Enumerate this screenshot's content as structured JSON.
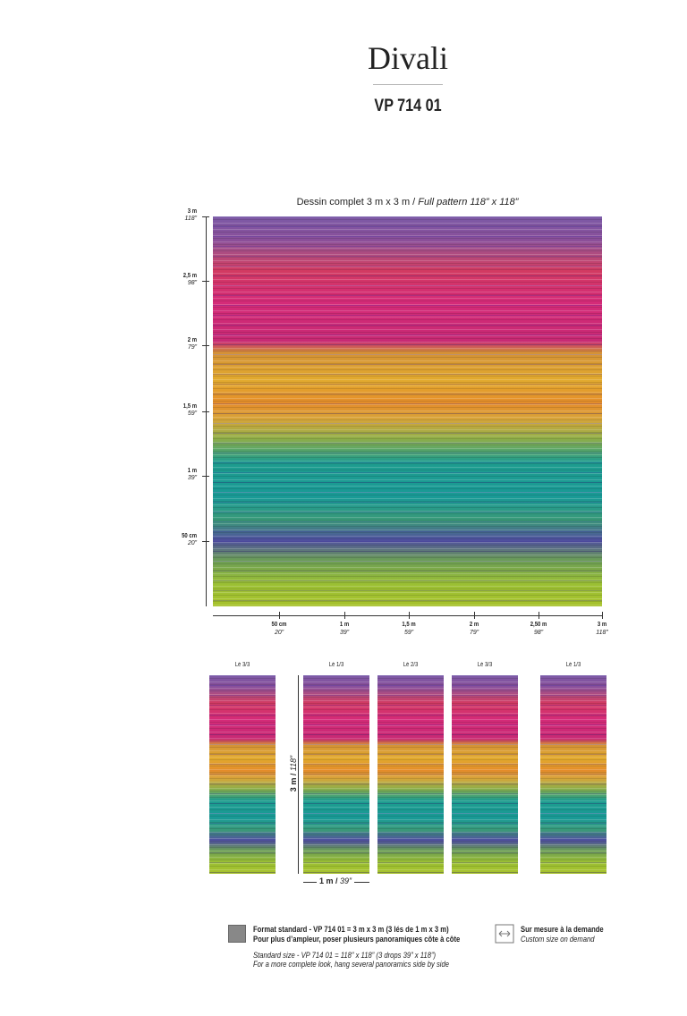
{
  "header": {
    "title": "Divali",
    "reference": "VP 714 01"
  },
  "full_pattern": {
    "caption": "Dessin complet 3 m x 3 m / ",
    "caption_en": "Full pattern 118” x 118”",
    "height_ticks": [
      {
        "metric": "3 m",
        "imperial": "118”"
      },
      {
        "metric": "2,5 m",
        "imperial": "98”"
      },
      {
        "metric": "2 m",
        "imperial": "79”"
      },
      {
        "metric": "1,5 m",
        "imperial": "59”"
      },
      {
        "metric": "1 m",
        "imperial": "39”"
      },
      {
        "metric": "50 cm",
        "imperial": "20”"
      }
    ],
    "width_ticks": [
      {
        "metric": "50 cm",
        "imperial": "20”"
      },
      {
        "metric": "1 m",
        "imperial": "39”"
      },
      {
        "metric": "1,5 m",
        "imperial": "59”"
      },
      {
        "metric": "2 m",
        "imperial": "79”"
      },
      {
        "metric": "2,50 m",
        "imperial": "98”"
      },
      {
        "metric": "3 m",
        "imperial": "118”"
      }
    ]
  },
  "panels": {
    "labels": [
      "Lé 3/3",
      "Lé 1/3",
      "Lé 2/3",
      "Lé 3/3",
      "Lé 1/3"
    ],
    "height": {
      "metric": "3 m / ",
      "imperial": "118”"
    },
    "width": {
      "metric": "1 m / ",
      "imperial": "39”"
    }
  },
  "footer": {
    "standard_fr": "Format standard - VP 714 01 = 3 m x 3 m (3 lés de 1 m x 3 m)",
    "tip_fr": "Pour plus d’ampleur, poser plusieurs panoramiques côte à côte",
    "standard_en": "Standard size - VP 714 01 = 118” x 118” (3 drops 39” x 118”)",
    "tip_en": "For a more complete look, hang several panoramics side by side",
    "custom_fr": "Sur mesure à la demande",
    "custom_en": "Custom size on demand"
  }
}
